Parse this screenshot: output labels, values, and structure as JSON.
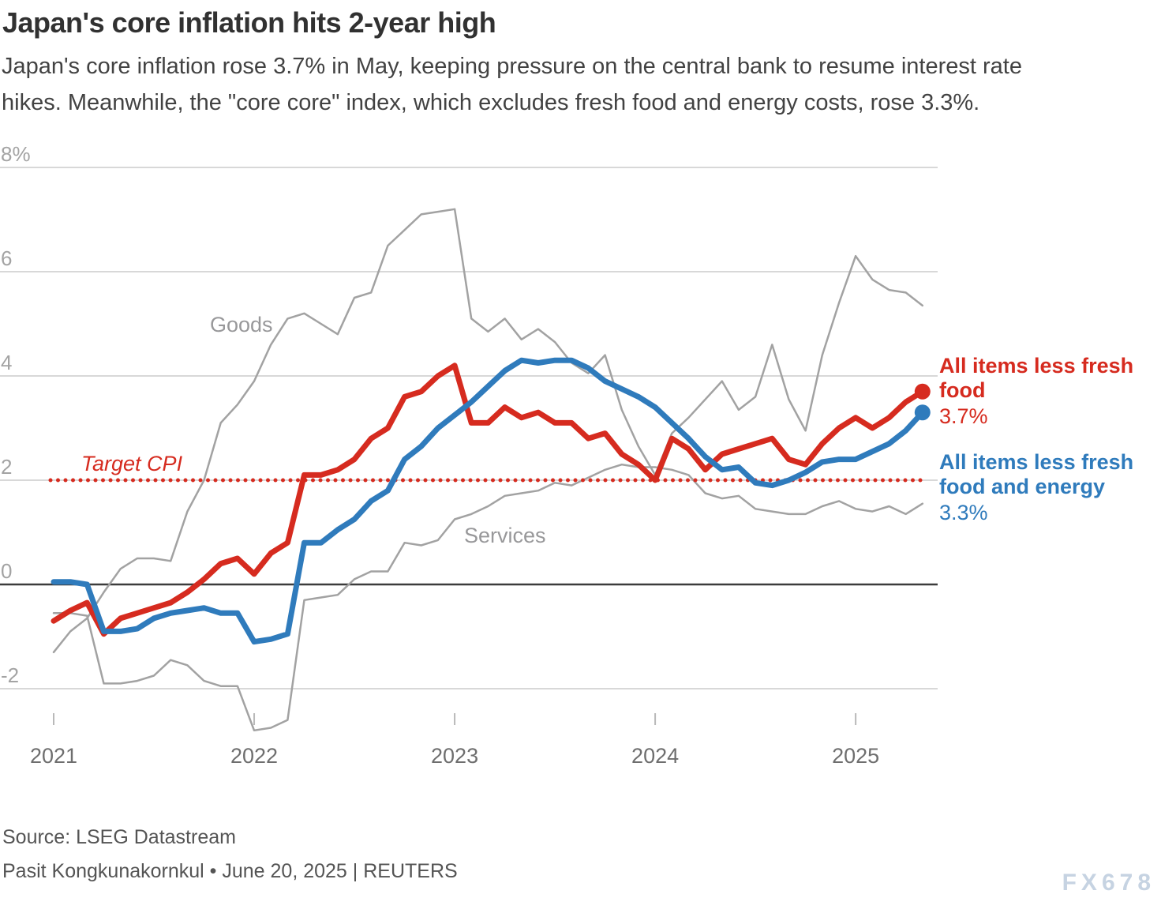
{
  "header": {
    "title": "Japan's core inflation hits 2-year high",
    "subtitle_lines": [
      "Japan's core inflation rose 3.7% in May, keeping pressure on the central bank to resume interest rate",
      "hikes. Meanwhile, the \"core core\" index, which excludes fresh food and energy costs, rose 3.3%."
    ]
  },
  "footer": {
    "source": "Source: LSEG Datastream",
    "byline": "Pasit Kongkunakornkul • June 20, 2025 | REUTERS",
    "watermark": "FX678"
  },
  "chart_data": {
    "type": "line",
    "frequency": "monthly",
    "x_range": [
      "2021-01",
      "2025-05"
    ],
    "ylim": [
      -3.3,
      8
    ],
    "grid": true,
    "legend_position": "right",
    "y_axis": {
      "ticks": [
        {
          "label": "8%",
          "value": 8
        },
        {
          "label": "6",
          "value": 6
        },
        {
          "label": "4",
          "value": 4
        },
        {
          "label": "2",
          "value": 2
        },
        {
          "label": "0",
          "value": 0
        },
        {
          "label": "-2",
          "value": -2
        }
      ]
    },
    "x_axis": {
      "ticks": [
        {
          "label": "2021",
          "index": 0
        },
        {
          "label": "2022",
          "index": 12
        },
        {
          "label": "2023",
          "index": 24
        },
        {
          "label": "2024",
          "index": 36
        },
        {
          "label": "2025",
          "index": 48
        }
      ]
    },
    "target_line": {
      "label": "Target CPI",
      "value": 2,
      "color": "#d62b1f"
    },
    "series": [
      {
        "name": "Goods",
        "color": "#a2a2a2",
        "width": 2.5,
        "end_dot": false,
        "values": [
          -1.3,
          -0.9,
          -0.65,
          -0.15,
          0.3,
          0.5,
          0.5,
          0.45,
          1.4,
          2.0,
          3.1,
          3.45,
          3.9,
          4.6,
          5.1,
          5.2,
          5.0,
          4.8,
          5.5,
          5.6,
          6.5,
          6.8,
          7.1,
          7.15,
          7.2,
          5.1,
          4.85,
          5.1,
          4.7,
          4.9,
          4.65,
          4.25,
          4.05,
          4.4,
          3.35,
          2.65,
          2.1,
          2.9,
          3.2,
          3.55,
          3.9,
          3.35,
          3.6,
          4.6,
          3.55,
          2.95,
          4.4,
          5.4,
          6.3,
          5.85,
          5.65,
          5.6,
          5.35
        ]
      },
      {
        "name": "Services",
        "color": "#a2a2a2",
        "width": 2.5,
        "end_dot": false,
        "values": [
          -0.55,
          -0.55,
          -0.6,
          -1.9,
          -1.9,
          -1.85,
          -1.75,
          -1.45,
          -1.55,
          -1.85,
          -1.95,
          -1.95,
          -2.8,
          -2.75,
          -2.6,
          -0.3,
          -0.25,
          -0.2,
          0.1,
          0.25,
          0.25,
          0.8,
          0.75,
          0.85,
          1.25,
          1.35,
          1.5,
          1.7,
          1.75,
          1.8,
          1.95,
          1.9,
          2.05,
          2.2,
          2.3,
          2.25,
          2.25,
          2.2,
          2.1,
          1.75,
          1.65,
          1.7,
          1.45,
          1.4,
          1.35,
          1.35,
          1.5,
          1.6,
          1.45,
          1.4,
          1.5,
          1.35,
          1.55
        ]
      },
      {
        "name": "All items less fresh food",
        "color": "#d62b1f",
        "width": 7,
        "end_dot": true,
        "end_label": "3.7%",
        "values": [
          -0.7,
          -0.5,
          -0.35,
          -0.95,
          -0.65,
          -0.55,
          -0.45,
          -0.35,
          -0.15,
          0.1,
          0.4,
          0.5,
          0.2,
          0.6,
          0.8,
          2.1,
          2.1,
          2.2,
          2.4,
          2.8,
          3.0,
          3.6,
          3.7,
          4.0,
          4.2,
          3.1,
          3.1,
          3.4,
          3.2,
          3.3,
          3.1,
          3.1,
          2.8,
          2.9,
          2.5,
          2.3,
          2.0,
          2.8,
          2.6,
          2.2,
          2.5,
          2.6,
          2.7,
          2.8,
          2.4,
          2.3,
          2.7,
          3.0,
          3.2,
          3.0,
          3.2,
          3.5,
          3.7
        ]
      },
      {
        "name": "All items less fresh food and energy",
        "color": "#2f7bbc",
        "width": 7,
        "end_dot": true,
        "end_label": "3.3%",
        "values": [
          0.05,
          0.05,
          0.0,
          -0.9,
          -0.9,
          -0.85,
          -0.65,
          -0.55,
          -0.5,
          -0.45,
          -0.55,
          -0.55,
          -1.1,
          -1.05,
          -0.95,
          0.8,
          0.8,
          1.05,
          1.25,
          1.6,
          1.8,
          2.4,
          2.65,
          3.0,
          3.25,
          3.5,
          3.8,
          4.1,
          4.3,
          4.25,
          4.3,
          4.3,
          4.15,
          3.9,
          3.75,
          3.6,
          3.4,
          3.1,
          2.8,
          2.45,
          2.2,
          2.25,
          1.95,
          1.9,
          2.0,
          2.15,
          2.35,
          2.4,
          2.4,
          2.55,
          2.7,
          2.95,
          3.3
        ]
      }
    ]
  }
}
